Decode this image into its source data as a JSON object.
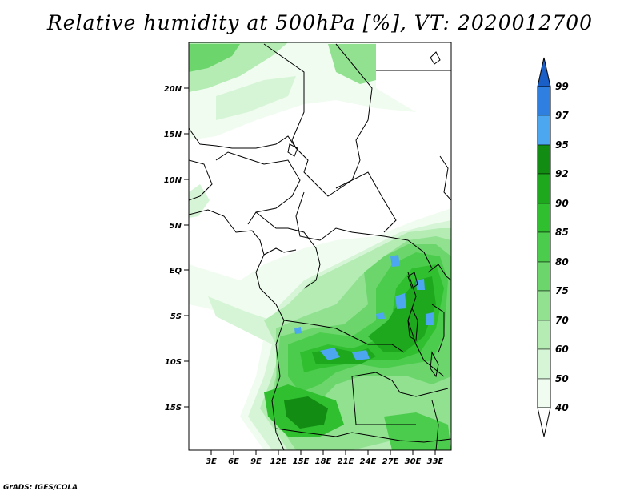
{
  "title": "Relative humidity at 500hPa [%], VT: 2020012700",
  "credit": "GrADS: IGES/COLA",
  "map": {
    "lat_ticks": [
      "20N",
      "15N",
      "10N",
      "5N",
      "EQ",
      "5S",
      "10S",
      "15S"
    ],
    "lon_ticks": [
      "3E",
      "6E",
      "9E",
      "12E",
      "15E",
      "18E",
      "21E",
      "24E",
      "27E",
      "30E",
      "33E"
    ],
    "lat_range": [
      -20,
      25
    ],
    "lon_range": [
      0,
      35
    ],
    "colors": {
      "rh_40": "#f0fcf0",
      "rh_50": "#d6f5d6",
      "rh_60": "#b4ecb4",
      "rh_70": "#91e191",
      "rh_75": "#6cd66c",
      "rh_80": "#4ccc4c",
      "rh_85": "#2fbf2f",
      "rh_90": "#1ea81e",
      "rh_92": "#128c12",
      "rh_95": "#4da6f0",
      "rh_97": "#2f7fe0",
      "rh_99": "#1a5fc8"
    }
  },
  "colorbar": {
    "labels": [
      "40",
      "50",
      "60",
      "70",
      "75",
      "80",
      "85",
      "90",
      "92",
      "95",
      "97",
      "99"
    ],
    "colors": [
      "#ffffff",
      "#f0fcf0",
      "#d6f5d6",
      "#b4ecb4",
      "#91e191",
      "#6cd66c",
      "#4ccc4c",
      "#2fbf2f",
      "#1ea81e",
      "#128c12",
      "#4da6f0",
      "#2f7fe0",
      "#1a5fc8"
    ]
  }
}
